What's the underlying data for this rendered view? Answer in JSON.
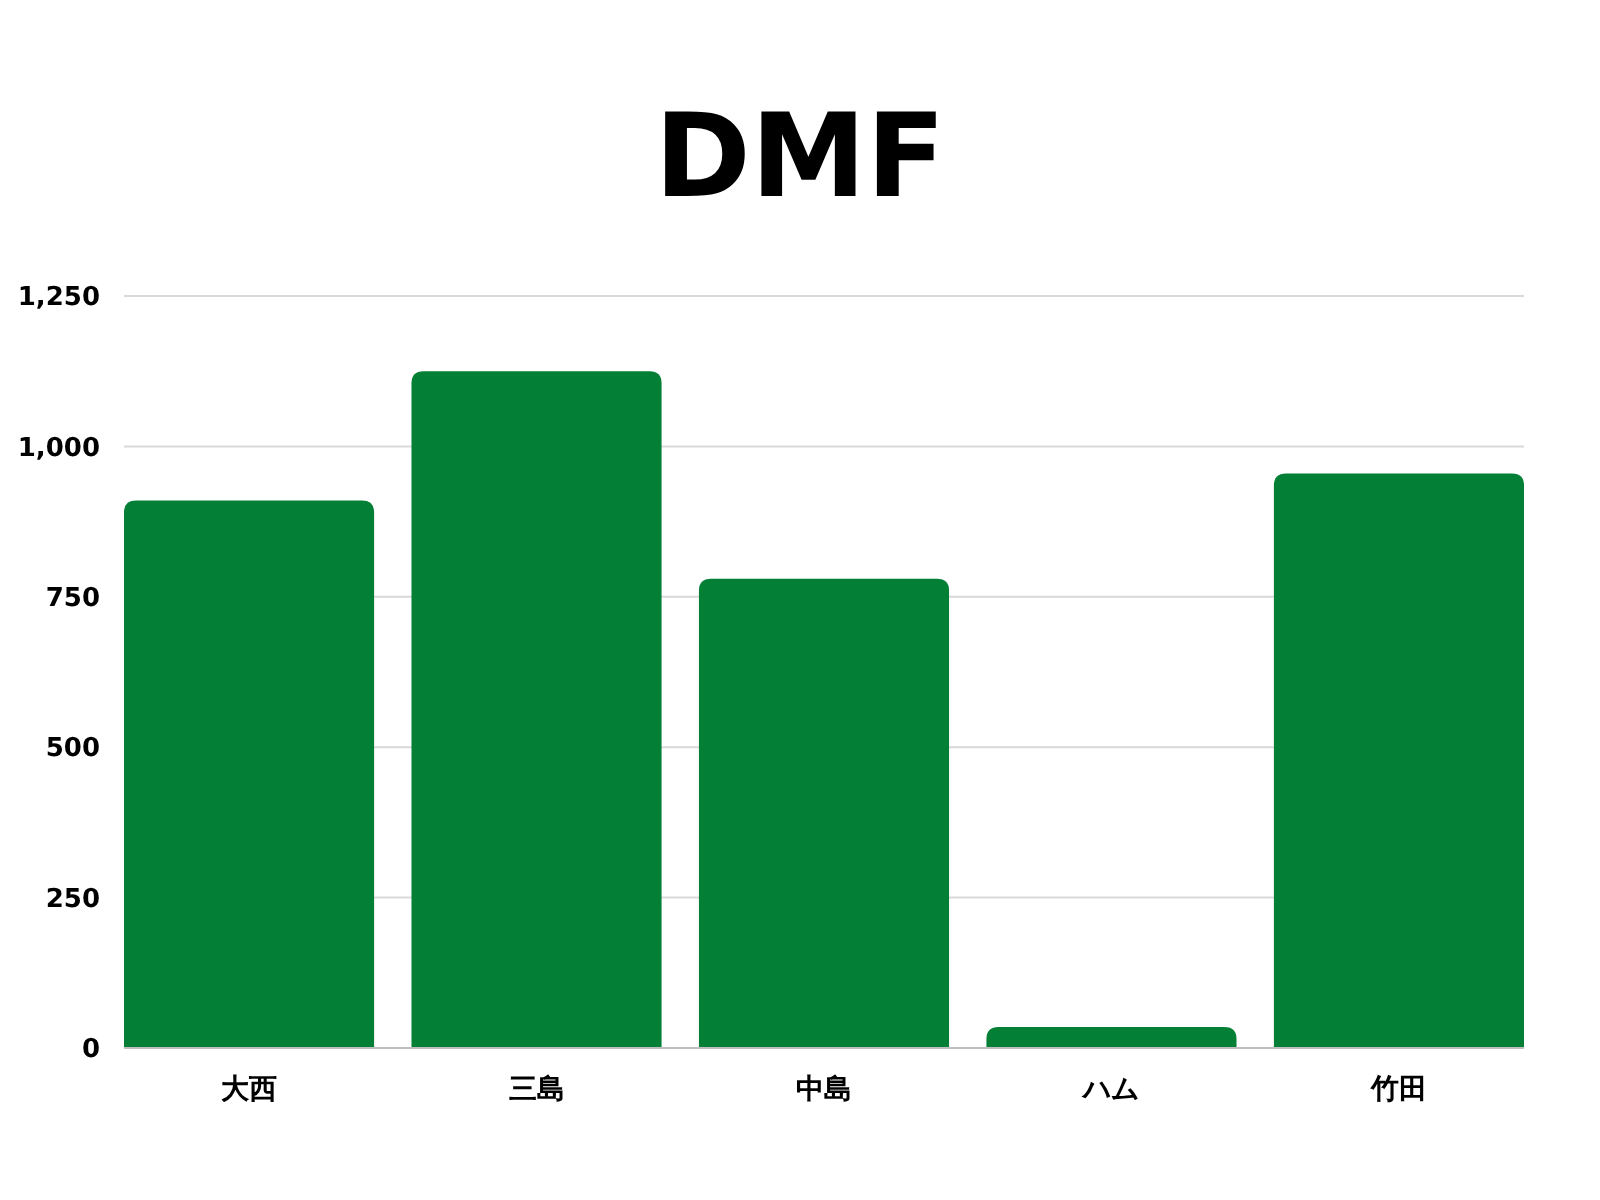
{
  "chart_data": {
    "type": "bar",
    "title": "DMF",
    "categories": [
      "大西",
      "三島",
      "中島",
      "ハム",
      "竹田"
    ],
    "values": [
      910,
      1125,
      780,
      35,
      955
    ],
    "color": "#038035",
    "ylim": [
      0,
      1250
    ],
    "yticks": [
      0,
      250,
      500,
      750,
      {
        "value": 1000,
        "label": "1,000"
      },
      {
        "value": 1250,
        "label": "1,250"
      }
    ],
    "grid": "y"
  }
}
